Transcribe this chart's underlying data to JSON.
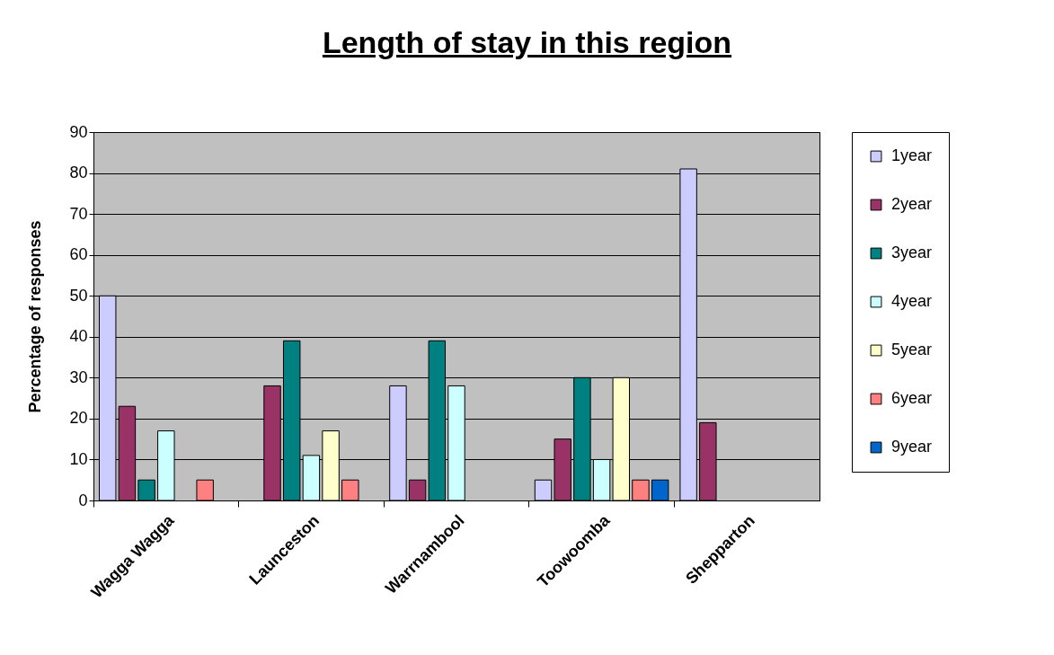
{
  "chart_data": {
    "type": "bar",
    "title": "Length of stay in this region",
    "ylabel": "Percentage of responses",
    "categories": [
      "Wagga Wagga",
      "Launceston",
      "Warrnambool",
      "Toowoomba",
      "Shepparton"
    ],
    "series": [
      {
        "name": "1year",
        "color": "#ccccff",
        "values": [
          50,
          null,
          28,
          5,
          81
        ]
      },
      {
        "name": "2year",
        "color": "#993366",
        "values": [
          23,
          28,
          5,
          15,
          19
        ]
      },
      {
        "name": "3year",
        "color": "#008080",
        "values": [
          5,
          39,
          39,
          30,
          null
        ]
      },
      {
        "name": "4year",
        "color": "#ccffff",
        "values": [
          17,
          11,
          28,
          10,
          null
        ]
      },
      {
        "name": "5year",
        "color": "#ffffcc",
        "values": [
          null,
          17,
          null,
          30,
          null
        ]
      },
      {
        "name": "6year",
        "color": "#ff8080",
        "values": [
          5,
          5,
          null,
          5,
          null
        ]
      },
      {
        "name": "9year",
        "color": "#0066cc",
        "values": [
          null,
          null,
          null,
          5,
          null
        ]
      }
    ],
    "ylim": [
      0,
      90
    ],
    "yticks": [
      0,
      10,
      20,
      30,
      40,
      50,
      60,
      70,
      80,
      90
    ],
    "grid": "y",
    "legend": "right"
  }
}
